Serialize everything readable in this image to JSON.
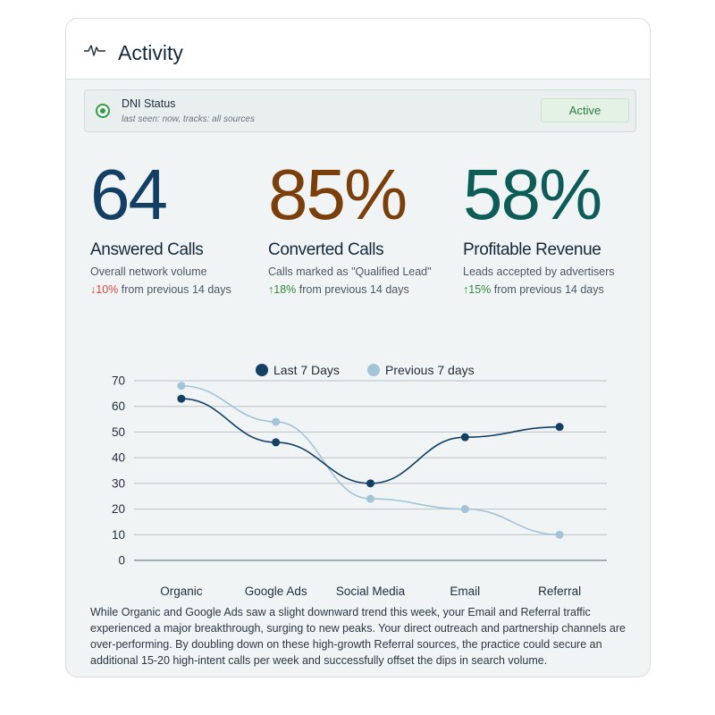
{
  "card": {
    "title": "Activity",
    "icon": "pulse-icon"
  },
  "dni": {
    "title": "DNI Status",
    "subtitle": "last seen: now, tracks: all sources",
    "badge": "Active",
    "icon": "status-dot-icon",
    "status_color": "#2e9e42"
  },
  "stats": [
    {
      "value": "64",
      "label": "Answered Calls",
      "description": "Overall network volume",
      "change_arrow": "↓",
      "change_value": "10%",
      "change_text": " from previous 14 days",
      "direction": "down",
      "color": "#123f63"
    },
    {
      "value": "85%",
      "label": "Converted Calls",
      "description": "Calls marked as \"Qualified Lead\"",
      "change_arrow": "↑",
      "change_value": "18%",
      "change_text": " from previous 14 days",
      "direction": "up",
      "color": "#7a3f0a"
    },
    {
      "value": "58%",
      "label": "Profitable Revenue",
      "description": "Leads accepted by advertisers",
      "change_arrow": "↑",
      "change_value": "15%",
      "change_text": " from previous 14 days",
      "direction": "up",
      "color": "#0d5c58"
    }
  ],
  "chart_data": {
    "type": "line",
    "categories": [
      "Organic",
      "Google Ads",
      "Social Media",
      "Email",
      "Referral"
    ],
    "series": [
      {
        "name": "Last 7 Days",
        "values": [
          63,
          46,
          30,
          48,
          52
        ],
        "color": "#123f63"
      },
      {
        "name": "Previous 7 days",
        "values": [
          68,
          54,
          24,
          20,
          10
        ],
        "color": "#a3c3d8"
      }
    ],
    "yticks": [
      0,
      10,
      20,
      30,
      40,
      50,
      60,
      70
    ],
    "ylim": [
      0,
      70
    ],
    "grid": true,
    "legend": "top",
    "smooth": true
  },
  "summary": "While Organic and Google Ads saw a slight downward trend this week, your Email and Referral traffic experienced a major breakthrough, surging to new peaks. Your direct outreach and partnership channels are over-performing. By doubling down on these high-growth Referral sources, the practice could secure an additional 15-20 high-intent calls per week and successfully offset the dips in search volume."
}
